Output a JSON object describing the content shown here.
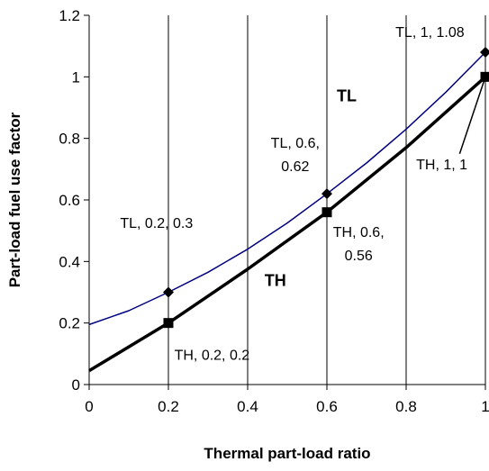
{
  "chart_data": {
    "type": "line",
    "xlabel": "Thermal part-load ratio",
    "ylabel": "Part-load fuel use factor",
    "xlim": [
      0,
      1
    ],
    "ylim": [
      0,
      1.2
    ],
    "x_ticks": [
      "0",
      "0.2",
      "0.4",
      "0.6",
      "0.8",
      "1"
    ],
    "y_ticks": [
      "0",
      "0.2",
      "0.4",
      "0.6",
      "0.8",
      "1",
      "1.2"
    ],
    "grid": "vertical",
    "legend": "none",
    "series": [
      {
        "name": "TL",
        "color": "#000080",
        "marker": "diamond",
        "x": [
          0,
          0.1,
          0.2,
          0.3,
          0.4,
          0.5,
          0.6,
          0.7,
          0.8,
          0.9,
          1.0
        ],
        "y": [
          0.195,
          0.24,
          0.3,
          0.365,
          0.44,
          0.525,
          0.62,
          0.72,
          0.83,
          0.95,
          1.08
        ],
        "marked_x": [
          0.2,
          0.6,
          1.0
        ]
      },
      {
        "name": "TH",
        "color": "#000000",
        "marker": "square",
        "x": [
          0,
          0.2,
          0.4,
          0.6,
          0.8,
          1.0
        ],
        "y": [
          0.045,
          0.2,
          0.375,
          0.56,
          0.77,
          1.0
        ],
        "marked_x": [
          0.2,
          0.6,
          1.0
        ]
      }
    ],
    "region_labels": [
      {
        "text": "TL",
        "x": 0.65,
        "y": 0.92
      },
      {
        "text": "TH",
        "x": 0.47,
        "y": 0.32
      }
    ],
    "annotations": [
      {
        "lines": [
          "TL, 1, 1.08"
        ],
        "x": 0.86,
        "y": 1.13
      },
      {
        "lines": [
          "TL, 0.6,",
          "0.62"
        ],
        "x": 0.52,
        "y": 0.77
      },
      {
        "lines": [
          "TL, 0.2, 0.3"
        ],
        "x": 0.17,
        "y": 0.51
      },
      {
        "lines": [
          "TH, 1, 1"
        ],
        "x": 0.89,
        "y": 0.7
      },
      {
        "lines": [
          "TH, 0.6,",
          "0.56"
        ],
        "x": 0.68,
        "y": 0.48
      },
      {
        "lines": [
          "TH, 0.2, 0.2"
        ],
        "x": 0.31,
        "y": 0.08
      }
    ],
    "leader_line": {
      "from": [
        0.935,
        0.75
      ],
      "to": [
        1.0,
        1.0
      ]
    }
  }
}
